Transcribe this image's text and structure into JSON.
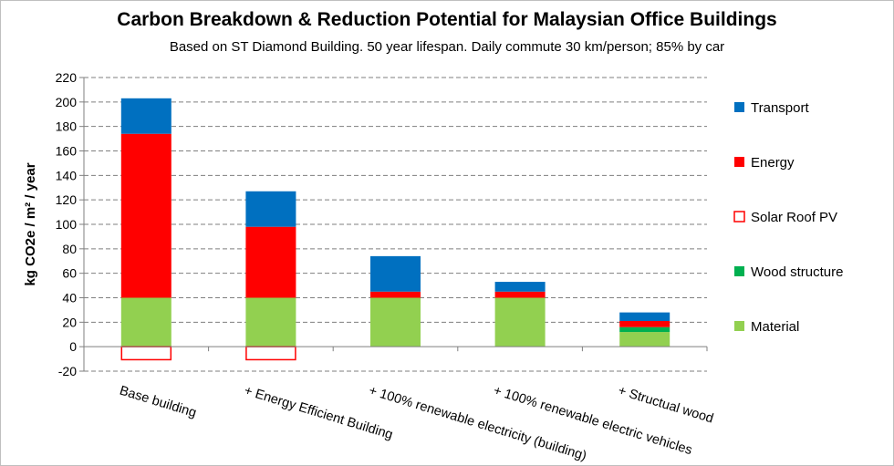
{
  "chart_data": {
    "type": "bar",
    "stacked": true,
    "title": "Carbon Breakdown & Reduction Potential for Malaysian Office Buildings",
    "subtitle": "Based on ST Diamond Building. 50 year lifespan. Daily commute 30 km/person; 85% by car",
    "ylabel": "kg CO2e / m² / year",
    "xlabel": "",
    "ylim": [
      -20,
      220
    ],
    "yticks": [
      -20,
      0,
      20,
      40,
      60,
      80,
      100,
      120,
      140,
      160,
      180,
      200,
      220
    ],
    "grid": true,
    "legend_position": "right",
    "categories": [
      "Base building",
      "+ Energy Efficient Building",
      "+ 100% renewable electricity (building)",
      "+ 100% renewable electric vehicles",
      "+ Structual wood"
    ],
    "series": [
      {
        "name": "Material",
        "color": "#92d050",
        "values": [
          40,
          40,
          40,
          40,
          12
        ]
      },
      {
        "name": "Wood structure",
        "color": "#00b050",
        "values": [
          0,
          0,
          0,
          0,
          4
        ]
      },
      {
        "name": "Solar Roof PV",
        "color": "#ff0000",
        "outline": true,
        "values": [
          -11,
          -11,
          0,
          0,
          0
        ]
      },
      {
        "name": "Energy",
        "color": "#ff0000",
        "values": [
          134,
          58,
          5,
          5,
          5
        ]
      },
      {
        "name": "Transport",
        "color": "#0070c0",
        "values": [
          29,
          29,
          29,
          8,
          7
        ]
      }
    ]
  }
}
